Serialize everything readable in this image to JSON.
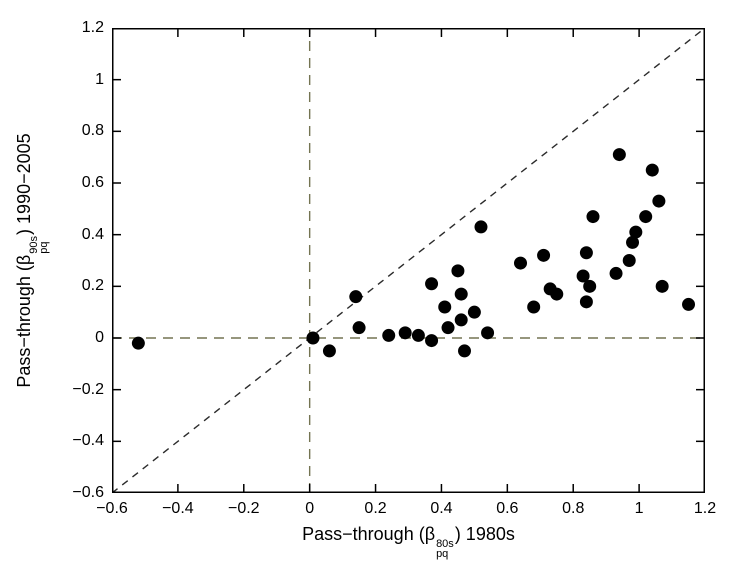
{
  "chart_data": {
    "type": "scatter",
    "title": "",
    "xlabel": {
      "prefix": "Pass−through (β",
      "sub": "pq",
      "sup": "80s",
      "suffix": ") 1980s"
    },
    "ylabel": {
      "prefix": "Pass−through (β",
      "sub": "pq",
      "sup": "90s",
      "suffix": ") 1990−2005"
    },
    "xlim": [
      -0.6,
      1.2
    ],
    "ylim": [
      -0.6,
      1.2
    ],
    "xticks": [
      -0.6,
      -0.4,
      -0.2,
      0,
      0.2,
      0.4,
      0.6,
      0.8,
      1,
      1.2
    ],
    "yticks": [
      -0.6,
      -0.4,
      -0.2,
      0,
      0.2,
      0.4,
      0.6,
      0.8,
      1,
      1.2
    ],
    "xtick_labels": [
      "−0.6",
      "−0.4",
      "−0.2",
      "0",
      "0.2",
      "0.4",
      "0.6",
      "0.8",
      "1",
      "1.2"
    ],
    "ytick_labels": [
      "−0.6",
      "−0.4",
      "−0.2",
      "0",
      "0.2",
      "0.4",
      "0.6",
      "0.8",
      "1",
      "1.2"
    ],
    "grid": false,
    "legend": "none",
    "marker": {
      "shape": "circle",
      "fill": "#000000",
      "radius_px": 6.5
    },
    "axis_color": "#000000",
    "reference_lines": [
      {
        "name": "diagonal-45-line",
        "from": [
          -0.6,
          -0.6
        ],
        "to": [
          1.2,
          1.2
        ],
        "style": "dashed",
        "color": "#2b2b2b",
        "dash": "7 6",
        "width": 1.4
      },
      {
        "name": "zero-horizontal-line",
        "from": [
          -0.6,
          0
        ],
        "to": [
          1.2,
          0
        ],
        "style": "dashed",
        "color": "#747452",
        "dash": "10 7",
        "width": 1.4
      },
      {
        "name": "zero-vertical-line",
        "from": [
          0,
          -0.6
        ],
        "to": [
          0,
          1.2
        ],
        "style": "dashed",
        "color": "#747452",
        "dash": "10 7",
        "width": 1.4
      }
    ],
    "points": [
      [
        -0.52,
        -0.02
      ],
      [
        0.01,
        0.0
      ],
      [
        0.06,
        -0.05
      ],
      [
        0.14,
        0.16
      ],
      [
        0.15,
        0.04
      ],
      [
        0.24,
        0.01
      ],
      [
        0.29,
        0.02
      ],
      [
        0.33,
        0.01
      ],
      [
        0.37,
        -0.01
      ],
      [
        0.47,
        -0.05
      ],
      [
        0.41,
        0.12
      ],
      [
        0.42,
        0.04
      ],
      [
        0.46,
        0.07
      ],
      [
        0.5,
        0.1
      ],
      [
        0.54,
        0.02
      ],
      [
        0.45,
        0.26
      ],
      [
        0.46,
        0.17
      ],
      [
        0.37,
        0.21
      ],
      [
        0.52,
        0.43
      ],
      [
        0.64,
        0.29
      ],
      [
        0.71,
        0.32
      ],
      [
        0.73,
        0.19
      ],
      [
        0.75,
        0.17
      ],
      [
        0.68,
        0.12
      ],
      [
        0.84,
        0.14
      ],
      [
        0.83,
        0.24
      ],
      [
        0.85,
        0.2
      ],
      [
        0.86,
        0.47
      ],
      [
        0.94,
        0.71
      ],
      [
        1.04,
        0.65
      ],
      [
        1.06,
        0.53
      ],
      [
        1.02,
        0.47
      ],
      [
        0.99,
        0.41
      ],
      [
        0.98,
        0.37
      ],
      [
        0.84,
        0.33
      ],
      [
        0.93,
        0.25
      ],
      [
        0.97,
        0.3
      ],
      [
        1.07,
        0.2
      ],
      [
        1.15,
        0.13
      ]
    ]
  }
}
